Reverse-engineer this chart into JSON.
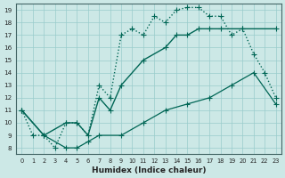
{
  "xlabel": "Humidex (Indice chaleur)",
  "bg_color": "#cce8e6",
  "grid_color": "#99cccc",
  "line_color": "#006655",
  "xlim": [
    -0.5,
    23.5
  ],
  "ylim": [
    7.5,
    19.5
  ],
  "xticks": [
    0,
    1,
    2,
    3,
    4,
    5,
    6,
    7,
    8,
    9,
    10,
    11,
    12,
    13,
    14,
    15,
    16,
    17,
    18,
    19,
    20,
    21,
    22,
    23
  ],
  "yticks": [
    8,
    9,
    10,
    11,
    12,
    13,
    14,
    15,
    16,
    17,
    18,
    19
  ],
  "curve1_x": [
    0,
    1,
    2,
    3,
    4,
    5,
    6,
    7,
    8,
    9,
    10,
    11,
    12,
    13,
    14,
    15,
    16,
    17,
    18,
    19,
    20,
    21,
    22,
    23
  ],
  "curve1_y": [
    11,
    9,
    9,
    8,
    10,
    10,
    9,
    13,
    12,
    17,
    17.5,
    17,
    18.5,
    18,
    19,
    19.2,
    19.2,
    18.5,
    18.5,
    17,
    17.5,
    15.5,
    14,
    12
  ],
  "curve2_x": [
    0,
    2,
    4,
    5,
    6,
    7,
    8,
    9,
    11,
    13,
    14,
    15,
    16,
    17,
    18,
    20,
    23
  ],
  "curve2_y": [
    11,
    9,
    10,
    10,
    9,
    12,
    11,
    13,
    15,
    16,
    17,
    17,
    17.5,
    17.5,
    17.5,
    17.5,
    17.5
  ],
  "curve3_x": [
    0,
    2,
    4,
    5,
    6,
    7,
    9,
    11,
    13,
    15,
    17,
    19,
    21,
    23
  ],
  "curve3_y": [
    11,
    9,
    8,
    8,
    8.5,
    9,
    9,
    10,
    11,
    11.5,
    12,
    13,
    14,
    11.5
  ]
}
